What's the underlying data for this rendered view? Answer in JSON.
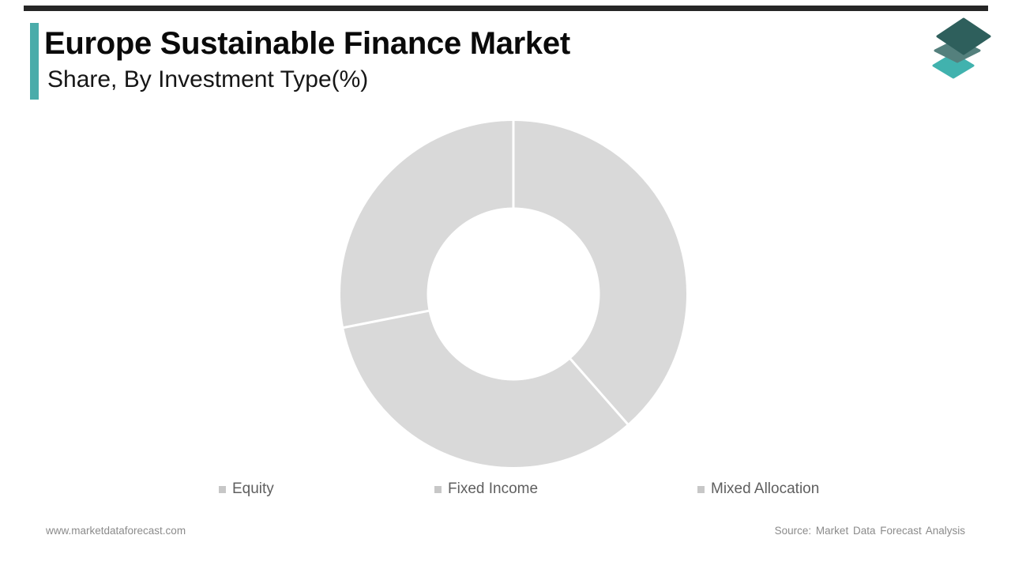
{
  "top_bar": {
    "color": "#262626"
  },
  "header": {
    "title": "Europe Sustainable Finance Market",
    "subtitle": "Share, By Investment Type(%)",
    "accent_color": "#4aacaa"
  },
  "logo": {
    "name": "market-data-forecast-logo",
    "layer_colors": [
      "#41b2ae",
      "#54807d",
      "#2e5f5c"
    ]
  },
  "chart_data": {
    "type": "pie",
    "variant": "donut",
    "title": "Europe Sustainable Finance Market Share, By Investment Type(%)",
    "categories": [
      "Equity",
      "Fixed Income",
      "Mixed Allocation"
    ],
    "values": [
      38.5,
      33.4,
      28.1
    ],
    "unit": "%",
    "values_are_estimated_from_arc_angles": true,
    "segments": [
      {
        "label": "Equity",
        "start_deg": 0,
        "end_deg": 138.7
      },
      {
        "label": "Fixed Income",
        "start_deg": 138.7,
        "end_deg": 258.8
      },
      {
        "label": "Mixed Allocation",
        "start_deg": 258.8,
        "end_deg": 360
      }
    ],
    "slice_color": "#d9d9d9",
    "divider_color": "#ffffff",
    "inner_radius_ratio": 0.5,
    "data_labels": "none",
    "legend_position": "bottom"
  },
  "legend": {
    "marker_color": "#c7c7c7",
    "items": [
      "Equity",
      "Fixed Income",
      "Mixed Allocation"
    ]
  },
  "footer": {
    "website": "www.marketdataforecast.com",
    "source": "Source: Market Data Forecast Analysis"
  }
}
